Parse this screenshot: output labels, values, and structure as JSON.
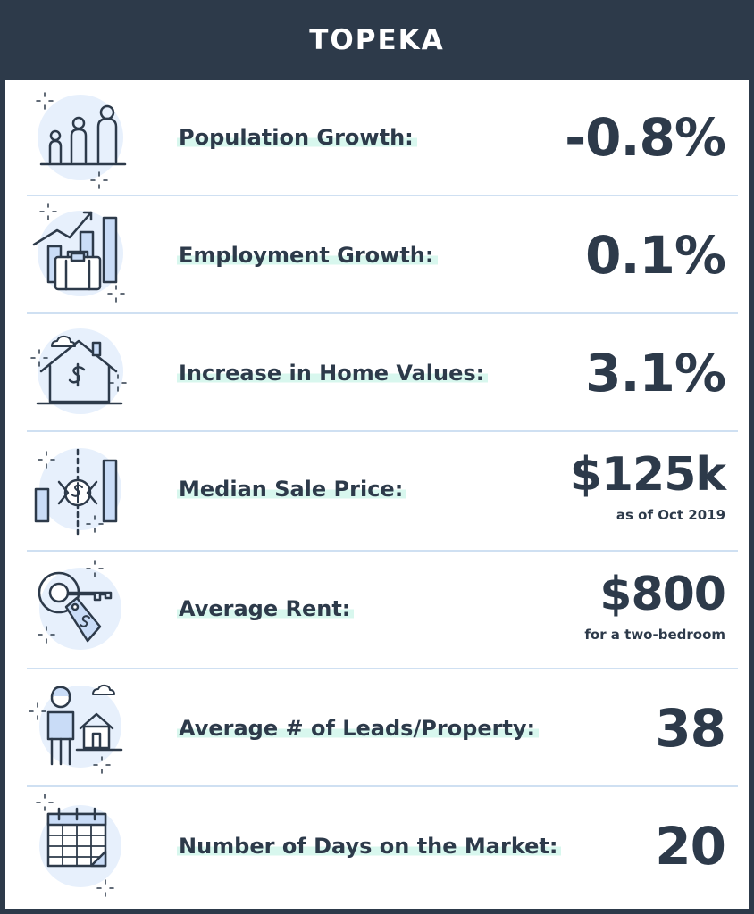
{
  "header": {
    "title": "TOPEKA"
  },
  "rows": [
    {
      "label": "Population Growth:",
      "value": "-0.8%",
      "note": "",
      "icon": "family-icon"
    },
    {
      "label": "Employment Growth:",
      "value": "0.1%",
      "note": "",
      "icon": "briefcase-growth-icon"
    },
    {
      "label": "Increase in Home Values:",
      "value": "3.1%",
      "note": "",
      "icon": "house-dollar-icon"
    },
    {
      "label": "Median Sale Price:",
      "value": "$125k",
      "note": "as of Oct 2019",
      "icon": "price-bars-icon"
    },
    {
      "label": "Average Rent:",
      "value": "$800",
      "note": "for a two-bedroom",
      "icon": "key-tag-icon"
    },
    {
      "label": "Average # of Leads/Property:",
      "value": "38",
      "note": "",
      "icon": "person-house-icon"
    },
    {
      "label": "Number of Days on the Market:",
      "value": "20",
      "note": "",
      "icon": "calendar-icon"
    }
  ],
  "colors": {
    "header_bg": "#2d3a4a",
    "text": "#2d3a4a",
    "icon_circle": "#e7f0fc",
    "icon_fill": "#c9dcf7",
    "highlight": "#d8f7ee",
    "divider": "#cfe0f2"
  }
}
